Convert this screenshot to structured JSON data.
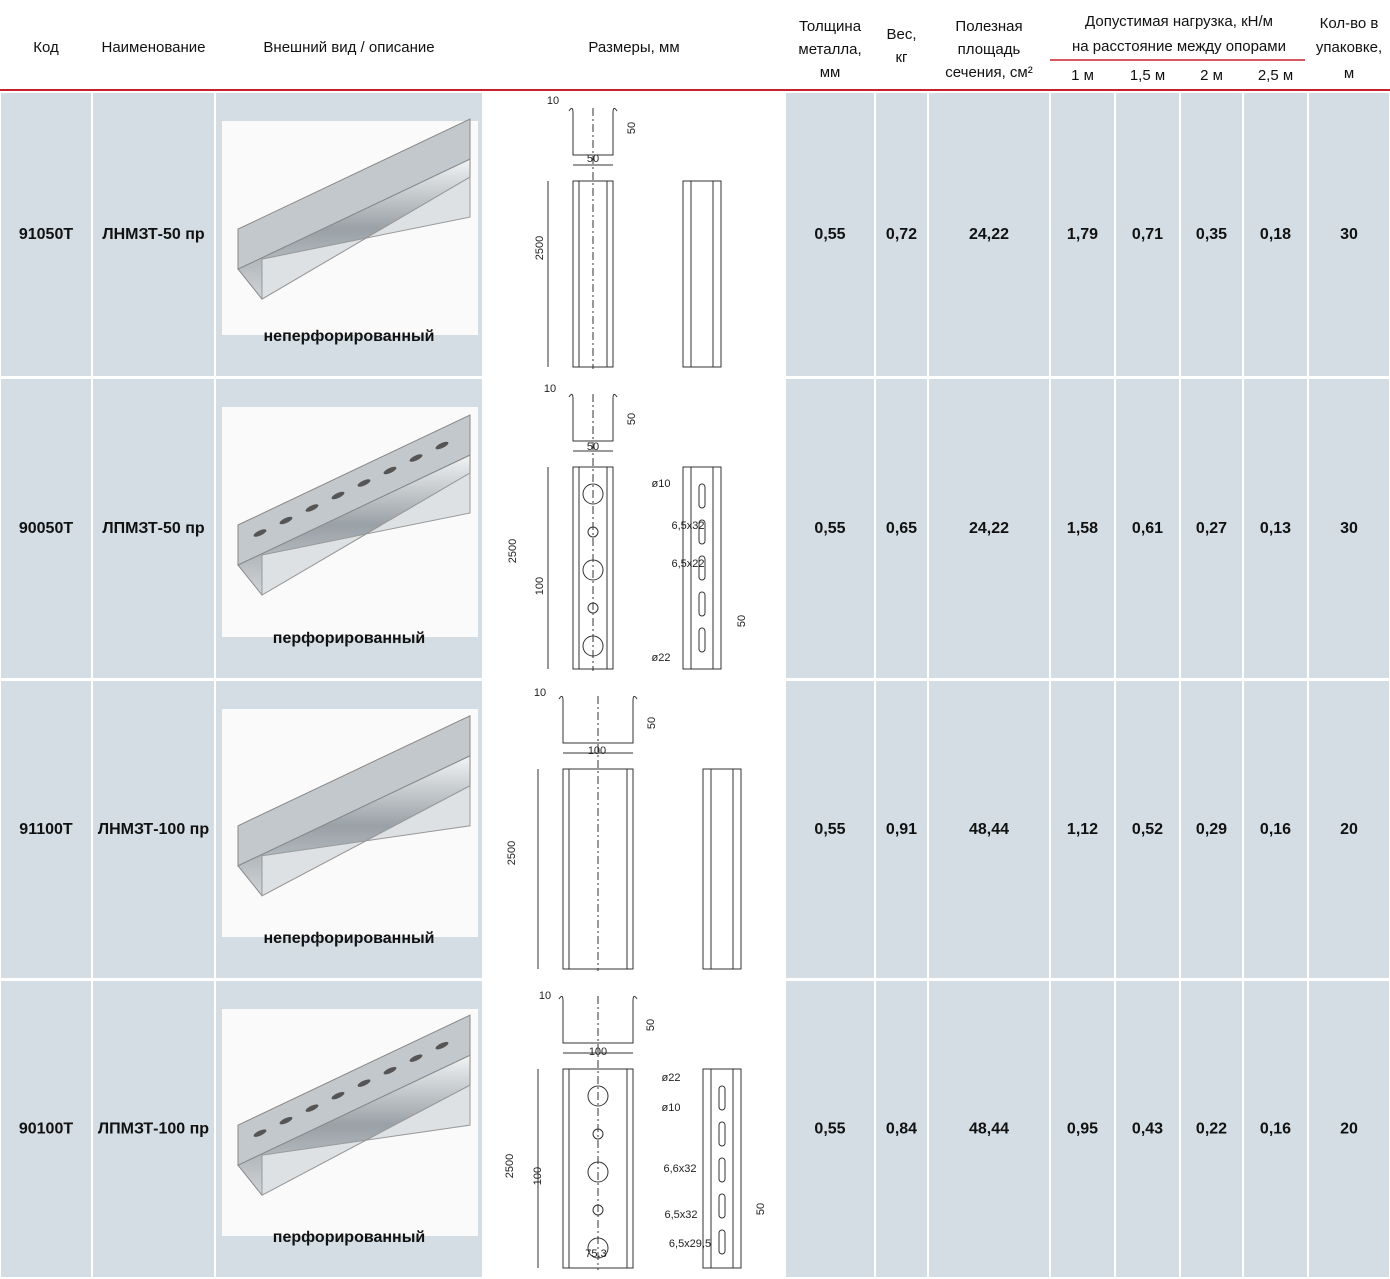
{
  "header": {
    "code": "Код",
    "name": "Наименование",
    "view": "Внешний вид / описание",
    "dims": "Размеры, мм",
    "thickness": [
      "Толщина",
      "металла,",
      "мм"
    ],
    "weight": [
      "Вес,",
      "кг"
    ],
    "area": [
      "Полезная",
      "площадь",
      "сечения, см²"
    ],
    "load_group": [
      "Допустимая нагрузка, кН/м",
      "на расстояние между опорами"
    ],
    "loads": [
      "1 м",
      "1,5 м",
      "2 м",
      "2,5 м"
    ],
    "pack": [
      "Кол-во в",
      "упаковке,",
      "м"
    ]
  },
  "rows": [
    {
      "code": "91050T",
      "name": "ЛНМЗТ-50 пр",
      "description": "неперфорированный",
      "thickness": "0,55",
      "weight": "0,72",
      "area": "24,22",
      "loads": [
        "1,79",
        "0,71",
        "0,35",
        "0,18"
      ],
      "pack": "30",
      "drawing_labels": [
        "10",
        "50",
        "50",
        "2500"
      ]
    },
    {
      "code": "90050T",
      "name": "ЛПМЗТ-50 пр",
      "description": "перфорированный",
      "thickness": "0,55",
      "weight": "0,65",
      "area": "24,22",
      "loads": [
        "1,58",
        "0,61",
        "0,27",
        "0,13"
      ],
      "pack": "30",
      "drawing_labels": [
        "10",
        "50",
        "50",
        "2500",
        "100",
        "ø10",
        "6,5x32",
        "6,5x22",
        "ø22",
        "50"
      ]
    },
    {
      "code": "91100T",
      "name": "ЛНМЗТ-100 пр",
      "description": "неперфорированный",
      "thickness": "0,55",
      "weight": "0,91",
      "area": "48,44",
      "loads": [
        "1,12",
        "0,52",
        "0,29",
        "0,16"
      ],
      "pack": "20",
      "drawing_labels": [
        "10",
        "50",
        "100",
        "2500"
      ]
    },
    {
      "code": "90100T",
      "name": "ЛПМЗТ-100 пр",
      "description": "перфорированный",
      "thickness": "0,55",
      "weight": "0,84",
      "area": "48,44",
      "loads": [
        "0,95",
        "0,43",
        "0,22",
        "0,16"
      ],
      "pack": "20",
      "drawing_labels": [
        "10",
        "50",
        "100",
        "2500",
        "100",
        "ø22",
        "ø10",
        "6,6x32",
        "6,5x32",
        "6,5x29,5",
        "50",
        "75,3"
      ]
    }
  ]
}
